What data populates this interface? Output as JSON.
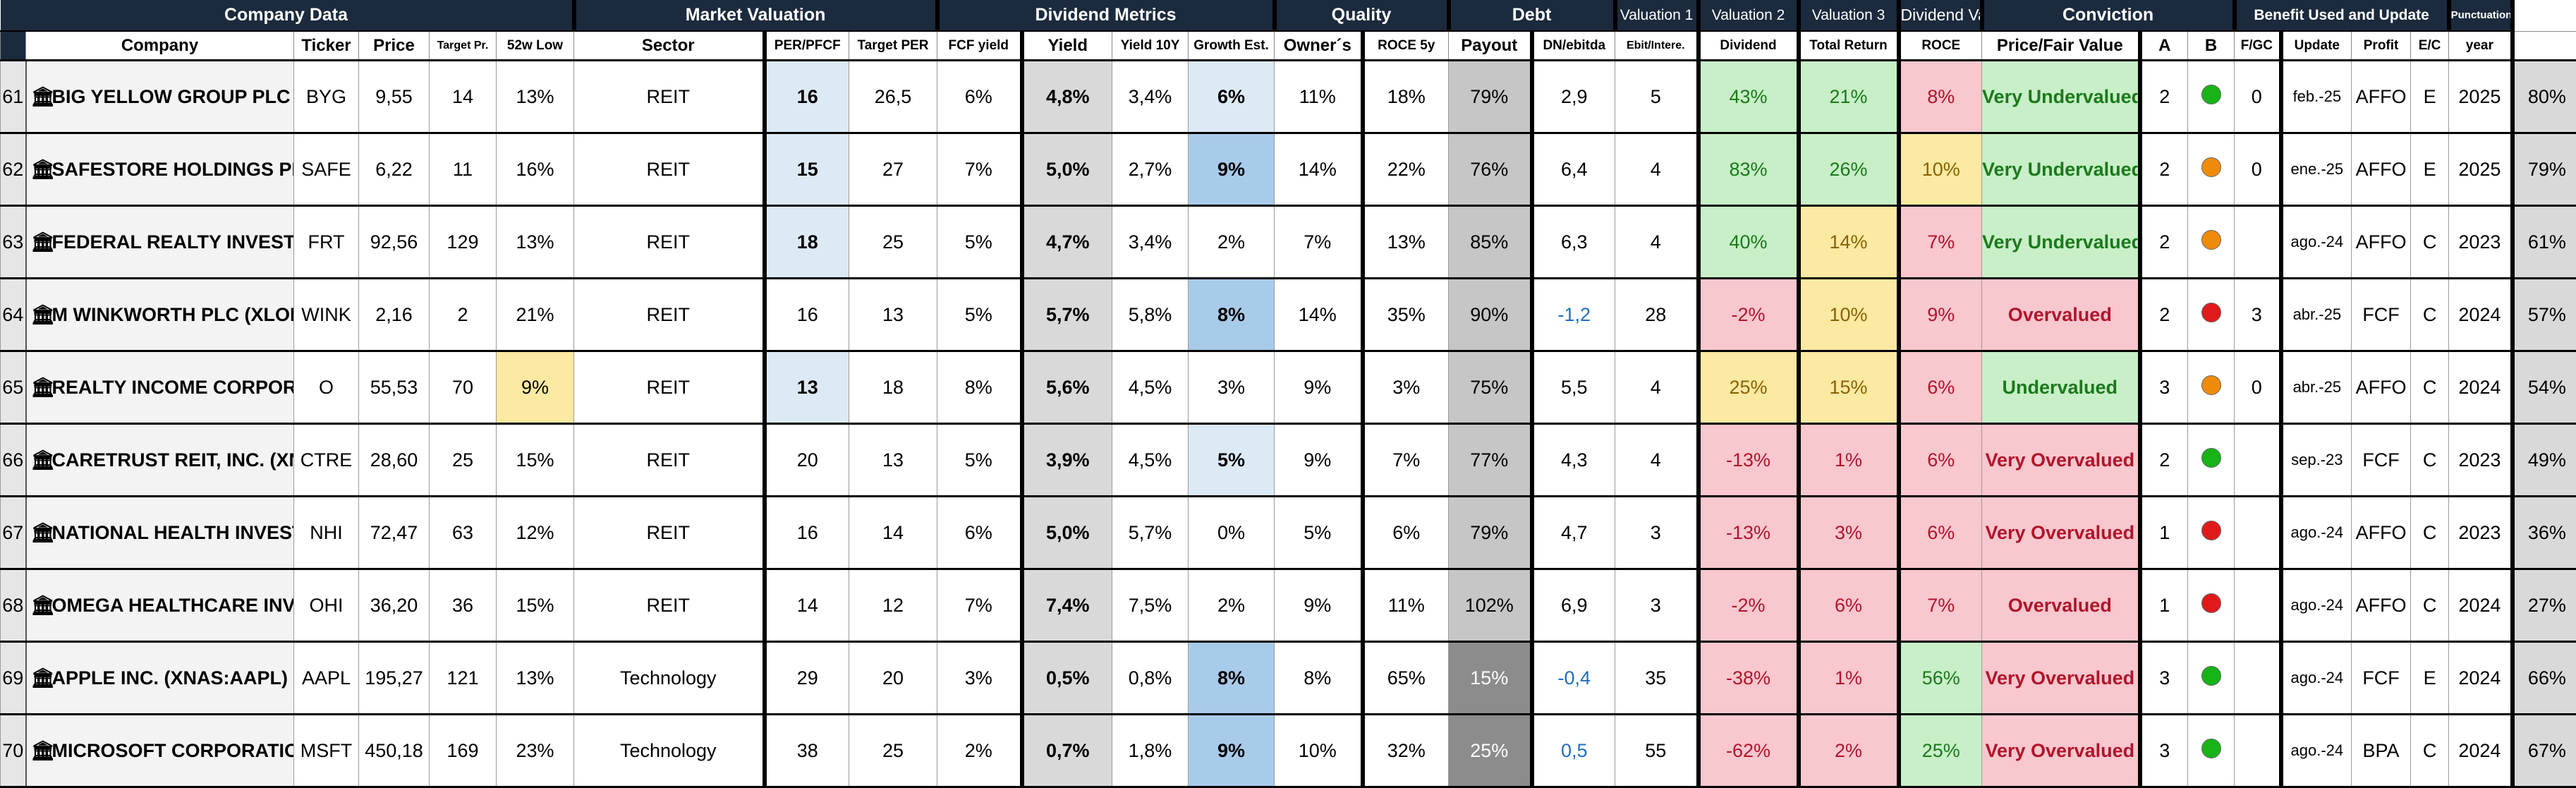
{
  "groups": [
    {
      "label": "Company Data",
      "span": 6
    },
    {
      "label": "Market Valuation",
      "span": 3
    },
    {
      "label": "Dividend Metrics",
      "span": 4
    },
    {
      "label": "Quality",
      "span": 2
    },
    {
      "label": "Debt",
      "span": 2
    },
    {
      "label": "Valuation 1",
      "span": 1
    },
    {
      "label": "Valuation 2",
      "span": 1
    },
    {
      "label": "Valuation 3",
      "span": 1
    },
    {
      "label": "Dividend Valuation",
      "span": 1
    },
    {
      "label": "Conviction",
      "span": 3
    },
    {
      "label": "Benefit Used and Update",
      "span": 4
    },
    {
      "label": "Punctuation",
      "span": 1
    }
  ],
  "headers": [
    "",
    "Company",
    "Ticker",
    "Price",
    "Target Pr.",
    "52w Low",
    "Sector",
    "PER/PFCF",
    "Target PER",
    "FCF yield",
    "Yield",
    "Yield 10Y",
    "Growth Est.",
    "Owner´s",
    "ROCE 5y",
    "Payout",
    "DN/ebitda",
    "Ebit/Intere.",
    "Dividend",
    "Total Return",
    "ROCE",
    "Price/Fair Value",
    "A",
    "B",
    "F/GC",
    "Update",
    "Profit",
    "E/C",
    "year",
    ""
  ],
  "colors": {
    "header_bg": "#1b2a3d",
    "green_bg": "#c8efc8",
    "red_bg": "#f9c7ce",
    "yellow_bg": "#fce9a2",
    "dot_green": "#17b317",
    "dot_orange": "#f08a0a",
    "dot_red": "#e01a1a"
  },
  "icons": {
    "company": "bank-icon",
    "conviction_b": "status-dot"
  },
  "rows": [
    {
      "n": "61",
      "company": "BIG YELLOW GROUP PLC (XLON:BYG)",
      "ticker": "BYG",
      "price": "9,55",
      "target": "14",
      "low52": "13%",
      "sector": "REIT",
      "per": "16",
      "tper": "26,5",
      "fcf": "6%",
      "yield": "4,8%",
      "y10": "3,4%",
      "growth": "6%",
      "owner": "11%",
      "roce5": "18%",
      "payout": "79%",
      "dn": "2,9",
      "ebit": "5",
      "v1": "43%",
      "v2": "21%",
      "v3": "8%",
      "pfv": "Very Undervalued",
      "a": "2",
      "b": "green",
      "f": "0",
      "upd": "feb.-25",
      "profit": "AFFO",
      "ec": "E",
      "year": "2025",
      "punct": "80%"
    },
    {
      "n": "62",
      "company": "SAFESTORE HOLDINGS PLC (XLON:SAFE)",
      "ticker": "SAFE",
      "price": "6,22",
      "target": "11",
      "low52": "16%",
      "sector": "REIT",
      "per": "15",
      "tper": "27",
      "fcf": "7%",
      "yield": "5,0%",
      "y10": "2,7%",
      "growth": "9%",
      "owner": "14%",
      "roce5": "22%",
      "payout": "76%",
      "dn": "6,4",
      "ebit": "4",
      "v1": "83%",
      "v2": "26%",
      "v3": "10%",
      "pfv": "Very Undervalued",
      "a": "2",
      "b": "orange",
      "f": "0",
      "upd": "ene.-25",
      "profit": "AFFO",
      "ec": "E",
      "year": "2025",
      "punct": "79%"
    },
    {
      "n": "63",
      "company": "FEDERAL REALTY INVESTMENT TRUST (XNYS:FRT)",
      "ticker": "FRT",
      "price": "92,56",
      "target": "129",
      "low52": "13%",
      "sector": "REIT",
      "per": "18",
      "tper": "25",
      "fcf": "5%",
      "yield": "4,7%",
      "y10": "3,4%",
      "growth": "2%",
      "owner": "7%",
      "roce5": "13%",
      "payout": "85%",
      "dn": "6,3",
      "ebit": "4",
      "v1": "40%",
      "v2": "14%",
      "v3": "7%",
      "pfv": "Very Undervalued",
      "a": "2",
      "b": "orange",
      "f": "",
      "upd": "ago.-24",
      "profit": "AFFO",
      "ec": "C",
      "year": "2023",
      "punct": "61%"
    },
    {
      "n": "64",
      "company": "M WINKWORTH PLC (XLON:WINK)",
      "ticker": "WINK",
      "price": "2,16",
      "target": "2",
      "low52": "21%",
      "sector": "REIT",
      "per": "16",
      "tper": "13",
      "fcf": "5%",
      "yield": "5,7%",
      "y10": "5,8%",
      "growth": "8%",
      "owner": "14%",
      "roce5": "35%",
      "payout": "90%",
      "dn": "-1,2",
      "ebit": "28",
      "v1": "-2%",
      "v2": "10%",
      "v3": "9%",
      "pfv": "Overvalued",
      "a": "2",
      "b": "red",
      "f": "3",
      "upd": "abr.-25",
      "profit": "FCF",
      "ec": "C",
      "year": "2024",
      "punct": "57%"
    },
    {
      "n": "65",
      "company": "REALTY INCOME CORPORATION (XNYS:O)",
      "ticker": "O",
      "price": "55,53",
      "target": "70",
      "low52": "9%",
      "sector": "REIT",
      "per": "13",
      "tper": "18",
      "fcf": "8%",
      "yield": "5,6%",
      "y10": "4,5%",
      "growth": "3%",
      "owner": "9%",
      "roce5": "3%",
      "payout": "75%",
      "dn": "5,5",
      "ebit": "4",
      "v1": "25%",
      "v2": "15%",
      "v3": "6%",
      "pfv": "Undervalued",
      "a": "3",
      "b": "orange",
      "f": "0",
      "upd": "abr.-25",
      "profit": "AFFO",
      "ec": "C",
      "year": "2024",
      "punct": "54%"
    },
    {
      "n": "66",
      "company": "CARETRUST REIT, INC. (XNYS:CTRE)",
      "ticker": "CTRE",
      "price": "28,60",
      "target": "25",
      "low52": "15%",
      "sector": "REIT",
      "per": "20",
      "tper": "13",
      "fcf": "5%",
      "yield": "3,9%",
      "y10": "4,5%",
      "growth": "5%",
      "owner": "9%",
      "roce5": "7%",
      "payout": "77%",
      "dn": "4,3",
      "ebit": "4",
      "v1": "-13%",
      "v2": "1%",
      "v3": "6%",
      "pfv": "Very Overvalued",
      "a": "2",
      "b": "green",
      "f": "",
      "upd": "sep.-23",
      "profit": "FCF",
      "ec": "C",
      "year": "2023",
      "punct": "49%"
    },
    {
      "n": "67",
      "company": "NATIONAL HEALTH INVESTORS, INC. (XNYS:NHI)",
      "ticker": "NHI",
      "price": "72,47",
      "target": "63",
      "low52": "12%",
      "sector": "REIT",
      "per": "16",
      "tper": "14",
      "fcf": "6%",
      "yield": "5,0%",
      "y10": "5,7%",
      "growth": "0%",
      "owner": "5%",
      "roce5": "6%",
      "payout": "79%",
      "dn": "4,7",
      "ebit": "3",
      "v1": "-13%",
      "v2": "3%",
      "v3": "6%",
      "pfv": "Very Overvalued",
      "a": "1",
      "b": "red",
      "f": "",
      "upd": "ago.-24",
      "profit": "AFFO",
      "ec": "C",
      "year": "2023",
      "punct": "36%"
    },
    {
      "n": "68",
      "company": "OMEGA HEALTHCARE INVESTORS, INC. (XNYS:OHI)",
      "ticker": "OHI",
      "price": "36,20",
      "target": "36",
      "low52": "15%",
      "sector": "REIT",
      "per": "14",
      "tper": "12",
      "fcf": "7%",
      "yield": "7,4%",
      "y10": "7,5%",
      "growth": "2%",
      "owner": "9%",
      "roce5": "11%",
      "payout": "102%",
      "dn": "6,9",
      "ebit": "3",
      "v1": "-2%",
      "v2": "6%",
      "v3": "7%",
      "pfv": "Overvalued",
      "a": "1",
      "b": "red",
      "f": "",
      "upd": "ago.-24",
      "profit": "AFFO",
      "ec": "C",
      "year": "2024",
      "punct": "27%"
    },
    {
      "n": "69",
      "company": "APPLE INC. (XNAS:AAPL)",
      "ticker": "AAPL",
      "price": "195,27",
      "target": "121",
      "low52": "13%",
      "sector": "Technology",
      "per": "29",
      "tper": "20",
      "fcf": "3%",
      "yield": "0,5%",
      "y10": "0,8%",
      "growth": "8%",
      "owner": "8%",
      "roce5": "65%",
      "payout": "15%",
      "dn": "-0,4",
      "ebit": "35",
      "v1": "-38%",
      "v2": "1%",
      "v3": "56%",
      "pfv": "Very Overvalued",
      "a": "3",
      "b": "green",
      "f": "",
      "upd": "ago.-24",
      "profit": "FCF",
      "ec": "E",
      "year": "2024",
      "punct": "66%"
    },
    {
      "n": "70",
      "company": "MICROSOFT CORPORATION (XNAS:MSFT)",
      "ticker": "MSFT",
      "price": "450,18",
      "target": "169",
      "low52": "23%",
      "sector": "Technology",
      "per": "38",
      "tper": "25",
      "fcf": "2%",
      "yield": "0,7%",
      "y10": "1,8%",
      "growth": "9%",
      "owner": "10%",
      "roce5": "32%",
      "payout": "25%",
      "dn": "0,5",
      "ebit": "55",
      "v1": "-62%",
      "v2": "2%",
      "v3": "25%",
      "pfv": "Very Overvalued",
      "a": "3",
      "b": "green",
      "f": "",
      "upd": "ago.-24",
      "profit": "BPA",
      "ec": "C",
      "year": "2024",
      "punct": "67%"
    }
  ]
}
